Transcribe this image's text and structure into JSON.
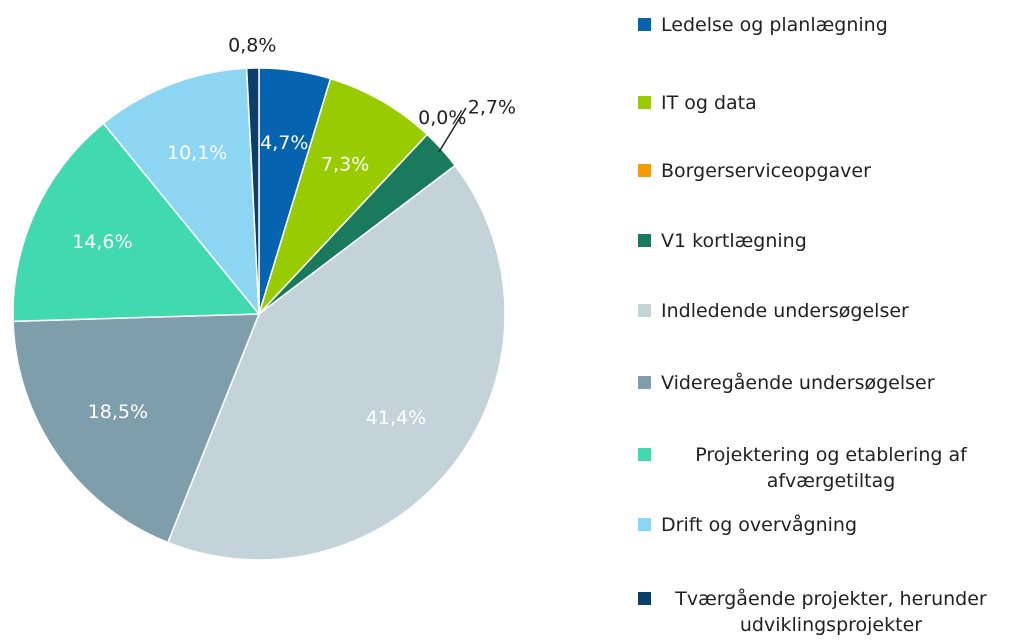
{
  "chart_data": {
    "type": "pie",
    "categories": [
      "Ledelse og planlægning",
      "IT og data",
      "Borgerserviceopgaver",
      "V1 kortlægning",
      "Indledende undersøgelser",
      "Videregående undersøgelser",
      "Projektering og etablering af afværgetiltag",
      "Drift og overvågning",
      "Tværgående projekter, herunder udviklingsprojekter"
    ],
    "values": [
      4.7,
      7.3,
      0.0,
      2.7,
      41.4,
      18.5,
      14.6,
      10.1,
      0.8
    ],
    "value_labels": [
      "4,7%",
      "7,3%",
      "0,0%",
      "2,7%",
      "41,4%",
      "18,5%",
      "14,6%",
      "10,1%",
      "0,8%"
    ],
    "colors": [
      "#0563b0",
      "#99cc00",
      "#f59b00",
      "#1a7a5e",
      "#c4d3da",
      "#7f9eab",
      "#40d9b0",
      "#8cd5f3",
      "#0b3e6b"
    ],
    "legend": "right"
  }
}
